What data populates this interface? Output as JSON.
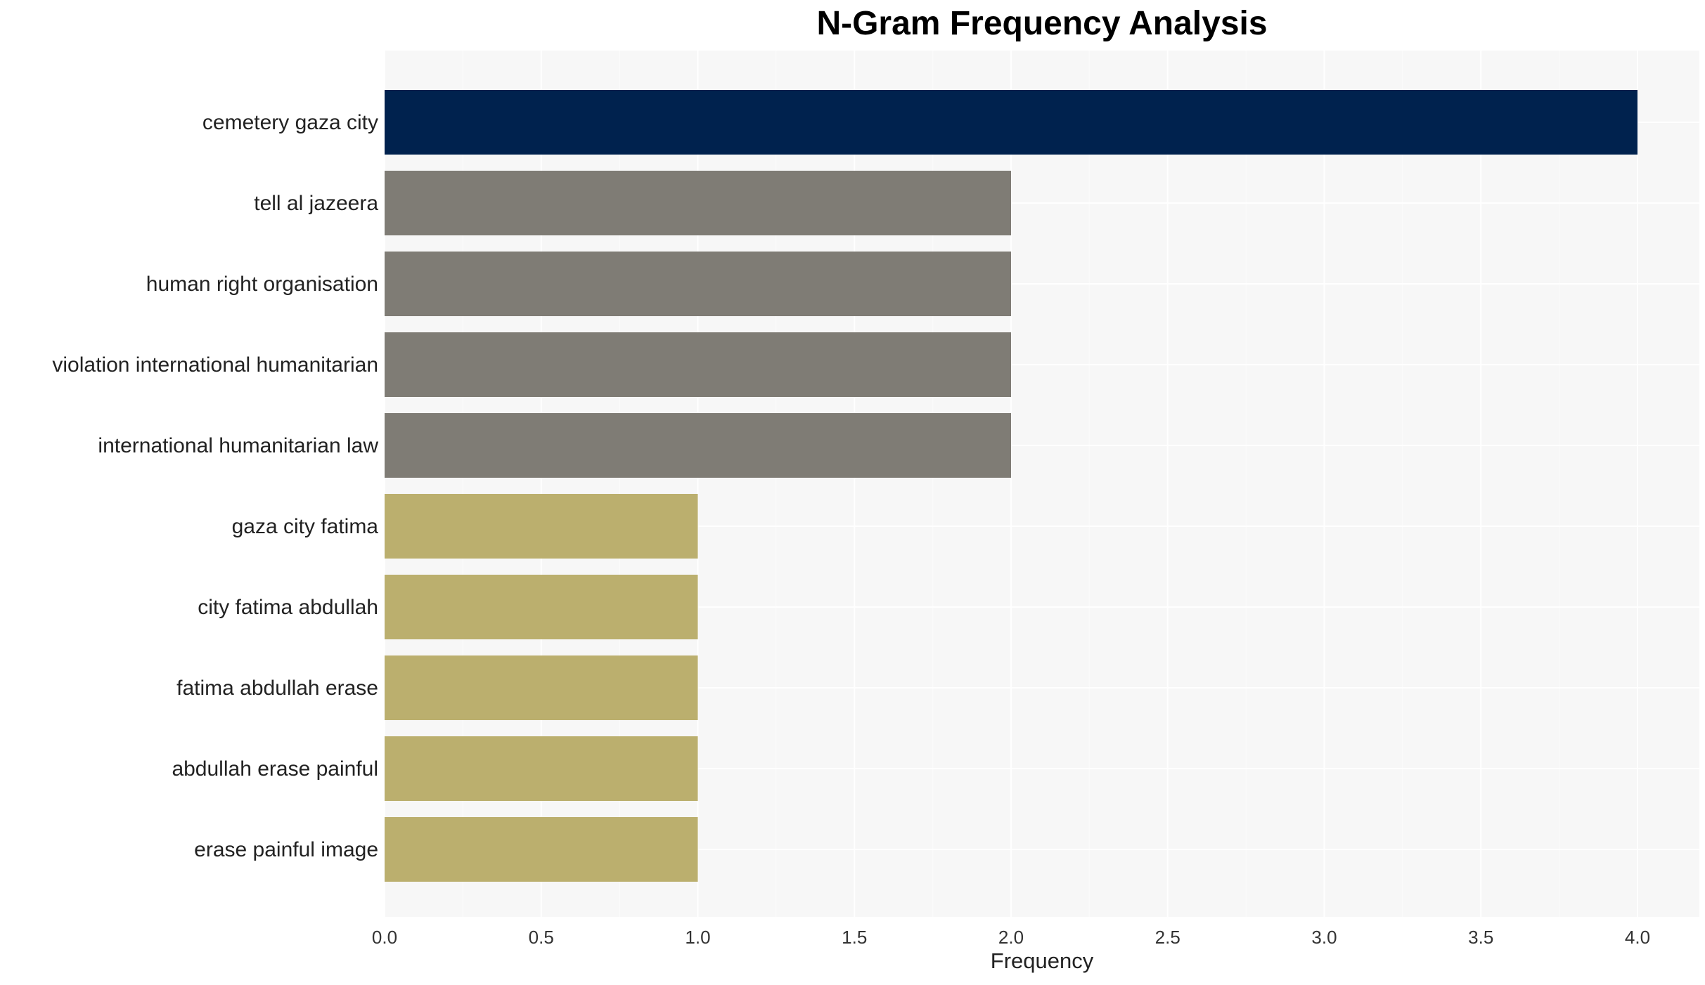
{
  "chart_data": {
    "type": "bar",
    "orientation": "horizontal",
    "title": "N-Gram Frequency Analysis",
    "xlabel": "Frequency",
    "ylabel": "",
    "xlim": [
      0,
      4.2
    ],
    "xticks": [
      "0.0",
      "0.5",
      "1.0",
      "1.5",
      "2.0",
      "2.5",
      "3.0",
      "3.5",
      "4.0"
    ],
    "grid": true,
    "categories": [
      "cemetery gaza city",
      "tell al jazeera",
      "human right organisation",
      "violation international humanitarian",
      "international humanitarian law",
      "gaza city fatima",
      "city fatima abdullah",
      "fatima abdullah erase",
      "abdullah erase painful",
      "erase painful image"
    ],
    "values": [
      4,
      2,
      2,
      2,
      2,
      1,
      1,
      1,
      1,
      1
    ],
    "colors": [
      "#00224e",
      "#7f7c75",
      "#7f7c75",
      "#7f7c75",
      "#7f7c75",
      "#bbaf6e",
      "#bbaf6e",
      "#bbaf6e",
      "#bbaf6e",
      "#bbaf6e"
    ],
    "background": "#f7f7f7"
  }
}
